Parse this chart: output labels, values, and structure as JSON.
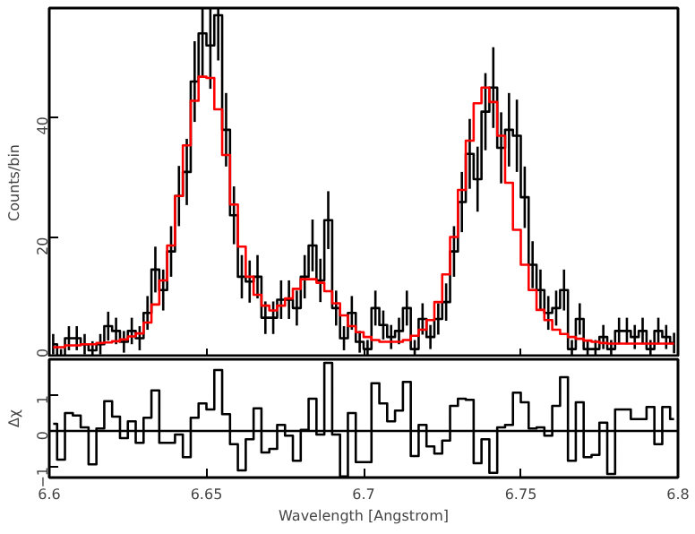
{
  "chart_data": [
    {
      "type": "step",
      "ylabel": "Counts/bin",
      "xlim": [
        6.6,
        6.8
      ],
      "xticks": [
        6.6,
        6.65,
        6.7,
        6.75,
        6.8
      ],
      "ylim": [
        0,
        58
      ],
      "yticks": [
        0,
        20,
        40
      ],
      "tick_labels": "y",
      "grid": false,
      "x": [
        6.60125,
        6.60375,
        6.60625,
        6.60875,
        6.61125,
        6.61375,
        6.61625,
        6.61875,
        6.62125,
        6.62375,
        6.62625,
        6.62875,
        6.63125,
        6.63375,
        6.63625,
        6.63875,
        6.64125,
        6.64375,
        6.64625,
        6.64875,
        6.65125,
        6.65375,
        6.65625,
        6.65875,
        6.66125,
        6.66375,
        6.66625,
        6.66875,
        6.67125,
        6.67375,
        6.67625,
        6.67875,
        6.68125,
        6.68375,
        6.68625,
        6.68875,
        6.69125,
        6.69375,
        6.69625,
        6.69875,
        6.70125,
        6.70375,
        6.70625,
        6.70875,
        6.71125,
        6.71375,
        6.71625,
        6.71875,
        6.72125,
        6.72375,
        6.72625,
        6.72875,
        6.73125,
        6.73375,
        6.73625,
        6.73875,
        6.74125,
        6.74375,
        6.74625,
        6.74875,
        6.75125,
        6.75375,
        6.75625,
        6.75875,
        6.76125,
        6.76375,
        6.76625,
        6.76875,
        6.77125,
        6.77375,
        6.77625,
        6.77875,
        6.78125,
        6.78375,
        6.78625,
        6.78875,
        6.79125,
        6.79375,
        6.79625,
        6.79875
      ],
      "series": [
        {
          "color": "#000000",
          "values": [
            2.2,
            0.2,
            3.2,
            3.2,
            2.2,
            1.2,
            2.2,
            5.2,
            4.4,
            2.6,
            4.4,
            3.2,
            7.4,
            14.6,
            11.2,
            17.6,
            26.8,
            30.8,
            45.8,
            53.8,
            51.8,
            56.8,
            37.8,
            23.6,
            13.4,
            12.6,
            13.4,
            6.6,
            6.6,
            9.6,
            9.6,
            8.2,
            13.4,
            18.6,
            12.8,
            22.8,
            8.2,
            3.2,
            7.4,
            2.6,
            1.4,
            8.2,
            5.4,
            3.4,
            4.4,
            8.2,
            1.4,
            6.4,
            3.4,
            6.4,
            9.2,
            17.6,
            25.8,
            33.8,
            29.6,
            40.8,
            44.8,
            34.8,
            37.8,
            36.8,
            26.6,
            15.4,
            11.2,
            7.4,
            8.2,
            11.2,
            1.4,
            6.4,
            1.4,
            1.4,
            3.4,
            1.4,
            4.4,
            4.4,
            3.4,
            4.4,
            1.4,
            4.4,
            3.4,
            2.4
          ],
          "errors": [
            1.7,
            1.2,
            2,
            2,
            1.7,
            1.5,
            1.7,
            2.4,
            2.2,
            1.8,
            2.2,
            2,
            2.8,
            3.8,
            3.4,
            4.2,
            5,
            5.5,
            6.7,
            7.3,
            7.2,
            7.5,
            6.1,
            4.8,
            3.6,
            3.5,
            3.6,
            2.7,
            2.7,
            3.2,
            3.2,
            2.9,
            3.6,
            4.3,
            3.6,
            4.8,
            2.9,
            2,
            2.8,
            1.8,
            1.5,
            2.9,
            2.4,
            2,
            2.2,
            2.9,
            1.5,
            2.6,
            2,
            2.6,
            3.1,
            4.2,
            5,
            5.8,
            5.4,
            6.4,
            6.7,
            5.9,
            6.1,
            6,
            5.1,
            3.9,
            3.4,
            2.8,
            2.9,
            3.4,
            1.5,
            2.6,
            1.5,
            1.5,
            2,
            1.5,
            2.2,
            2.2,
            2,
            2.2,
            1.5,
            2.2,
            2,
            1.7
          ]
        },
        {
          "color": "#ff0000",
          "values": [
            1.7,
            1.7,
            2.0,
            2.0,
            2.2,
            2.2,
            2.4,
            2.5,
            2.7,
            3.0,
            3.5,
            4.0,
            5.8,
            8.8,
            12.8,
            18.6,
            26.8,
            35.2,
            42.6,
            46.6,
            46.4,
            41.2,
            33.6,
            25.4,
            18.4,
            13.4,
            10.4,
            8.6,
            7.8,
            8.6,
            9.8,
            11.4,
            13.0,
            13.0,
            12.4,
            11.0,
            9.0,
            7.0,
            5.2,
            4.2,
            3.4,
            2.9,
            2.6,
            2.6,
            2.6,
            2.9,
            3.6,
            4.6,
            6.2,
            9.2,
            13.8,
            20.0,
            27.8,
            36.0,
            42.2,
            44.8,
            42.4,
            36.8,
            29.0,
            21.2,
            15.4,
            11.2,
            7.9,
            6.2,
            4.6,
            3.9,
            3.4,
            3.1,
            2.8,
            2.6,
            2.4,
            2.3,
            2.3,
            2.3,
            2.3,
            2.3,
            2.3,
            2.3,
            2.3,
            2.3
          ]
        }
      ]
    },
    {
      "type": "step",
      "ylabel": "Δχ",
      "xlabel": "Wavelength [Angstrom]",
      "xlim": [
        6.6,
        6.8
      ],
      "xticks": [
        6.6,
        6.65,
        6.7,
        6.75,
        6.8
      ],
      "ylim": [
        -1.3,
        2.0
      ],
      "yticks": [
        -1,
        0,
        1
      ],
      "grid": false,
      "ref_lines": [
        {
          "axis": "y",
          "value": 0,
          "color": "#000000"
        }
      ],
      "x": [
        6.60125,
        6.60375,
        6.60625,
        6.60875,
        6.61125,
        6.61375,
        6.61625,
        6.61875,
        6.62125,
        6.62375,
        6.62625,
        6.62875,
        6.63125,
        6.63375,
        6.63625,
        6.63875,
        6.64125,
        6.64375,
        6.64625,
        6.64875,
        6.65125,
        6.65375,
        6.65625,
        6.65875,
        6.66125,
        6.66375,
        6.66625,
        6.66875,
        6.67125,
        6.67375,
        6.67625,
        6.67875,
        6.68125,
        6.68375,
        6.68625,
        6.68875,
        6.69125,
        6.69375,
        6.69625,
        6.69875,
        6.70125,
        6.70375,
        6.70625,
        6.70875,
        6.71125,
        6.71375,
        6.71625,
        6.71875,
        6.72125,
        6.72375,
        6.72625,
        6.72875,
        6.73125,
        6.73375,
        6.73625,
        6.73875,
        6.74125,
        6.74375,
        6.74625,
        6.74875,
        6.75125,
        6.75375,
        6.75625,
        6.75875,
        6.76125,
        6.76375,
        6.76625,
        6.76875,
        6.77125,
        6.77375,
        6.77625,
        6.77875,
        6.78125,
        6.78375,
        6.78625,
        6.78875,
        6.79125,
        6.79375,
        6.79625,
        6.79875
      ],
      "series": [
        {
          "color": "#000000",
          "values": [
            0.2,
            -0.8,
            0.5,
            0.43,
            0.1,
            -0.93,
            0.07,
            0.83,
            0.4,
            -0.2,
            0.27,
            -0.33,
            0.37,
            1.13,
            -0.33,
            -0.33,
            -0.1,
            -0.73,
            0.37,
            0.77,
            0.6,
            1.7,
            0.47,
            -0.37,
            -1.1,
            -0.23,
            0.63,
            -0.6,
            -0.5,
            0.17,
            -0.13,
            -0.83,
            0.03,
            0.9,
            -0.1,
            1.9,
            -0.1,
            -1.27,
            0.5,
            -0.87,
            -0.87,
            1.33,
            0.77,
            0.27,
            0.57,
            1.37,
            -0.7,
            0.17,
            -0.43,
            -0.63,
            -0.27,
            0.7,
            0.9,
            0.87,
            -0.9,
            -0.23,
            -1.17,
            0.1,
            0.17,
            1.07,
            0.8,
            0.07,
            0.1,
            -0.13,
            0.7,
            1.5,
            -0.83,
            0.8,
            -0.73,
            -0.67,
            0.23,
            -1.2,
            0.6,
            0.6,
            0.33,
            0.33,
            0.67,
            -0.37,
            0.67,
            0.33
          ]
        }
      ]
    }
  ]
}
